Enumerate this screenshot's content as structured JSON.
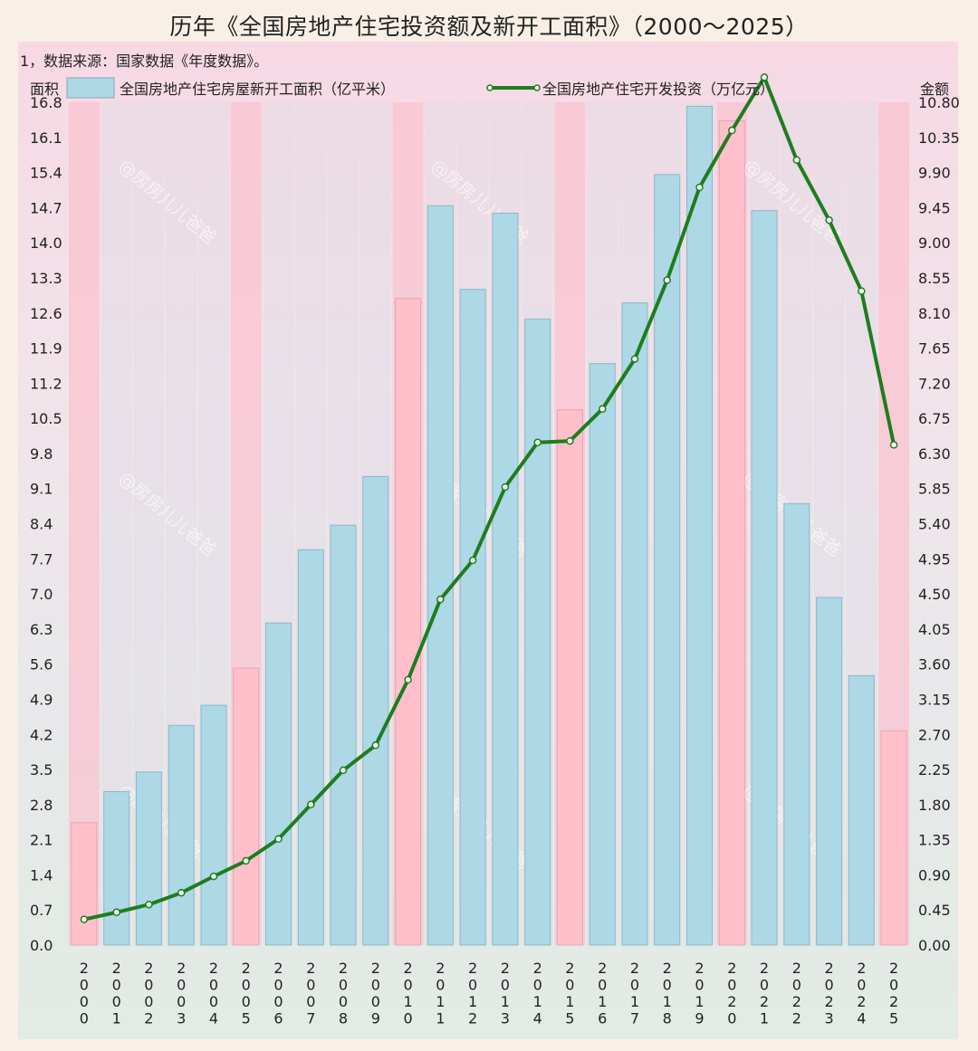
{
  "title": "历年《全国房地产住宅投资额及新开工面积》（2000～2025）",
  "source_note": "1，数据来源：国家数据《年度数据》。",
  "watermark": "@房房儿儿爸爸",
  "colors": {
    "bar_blue": "#add8e6",
    "bar_pink": "#ffc0cb",
    "line_green": "#1e7d1e",
    "band_pink": "#f9c3d0",
    "band_grey": "#e1dce6"
  },
  "chart_data": {
    "type": "bar+line",
    "title": "历年《全国房地产住宅投资额及新开工面积》（2000～2025）",
    "left_axis_label": "面积",
    "right_axis_label": "金额",
    "left_ylim": [
      0,
      16.8
    ],
    "right_ylim": [
      0,
      10.8
    ],
    "left_ticks": [
      "0.0",
      "0.7",
      "1.4",
      "2.1",
      "2.8",
      "3.5",
      "4.2",
      "4.9",
      "5.6",
      "6.3",
      "7.0",
      "7.7",
      "8.4",
      "9.1",
      "9.8",
      "10.5",
      "11.2",
      "11.9",
      "12.6",
      "13.3",
      "14.0",
      "14.7",
      "15.4",
      "16.1",
      "16.8"
    ],
    "right_ticks": [
      "0.00",
      "0.45",
      "0.90",
      "1.35",
      "1.80",
      "2.25",
      "2.70",
      "3.15",
      "3.60",
      "4.05",
      "4.50",
      "4.95",
      "5.40",
      "5.85",
      "6.30",
      "6.75",
      "7.20",
      "7.65",
      "8.10",
      "8.55",
      "9.00",
      "9.45",
      "9.90",
      "10.35",
      "10.80"
    ],
    "categories": [
      "2000",
      "2001",
      "2002",
      "2003",
      "2004",
      "2005",
      "2006",
      "2007",
      "2008",
      "2009",
      "2010",
      "2011",
      "2012",
      "2013",
      "2014",
      "2015",
      "2016",
      "2017",
      "2018",
      "2019",
      "2020",
      "2021",
      "2022",
      "2023",
      "2024",
      "2025"
    ],
    "highlight_years": [
      "2000",
      "2005",
      "2010",
      "2015",
      "2020",
      "2025"
    ],
    "series": [
      {
        "name": "全国房地产住宅房屋新开工面积（亿平米）",
        "kind": "bar",
        "axis": "left",
        "values": [
          2.44,
          3.06,
          3.45,
          4.38,
          4.78,
          5.52,
          6.42,
          7.88,
          8.37,
          9.34,
          12.89,
          14.74,
          13.07,
          14.59,
          12.48,
          10.67,
          11.59,
          12.8,
          15.36,
          16.72,
          16.43,
          14.64,
          8.8,
          6.93,
          5.37,
          4.27
        ]
      },
      {
        "name": "全国房地产住宅开发投资（万亿元）",
        "kind": "line",
        "axis": "right",
        "values": [
          0.33,
          0.42,
          0.52,
          0.67,
          0.88,
          1.08,
          1.36,
          1.8,
          2.24,
          2.56,
          3.4,
          4.43,
          4.93,
          5.87,
          6.44,
          6.46,
          6.87,
          7.51,
          8.52,
          9.71,
          10.44,
          11.12,
          10.06,
          9.29,
          8.38,
          6.41
        ]
      }
    ]
  }
}
